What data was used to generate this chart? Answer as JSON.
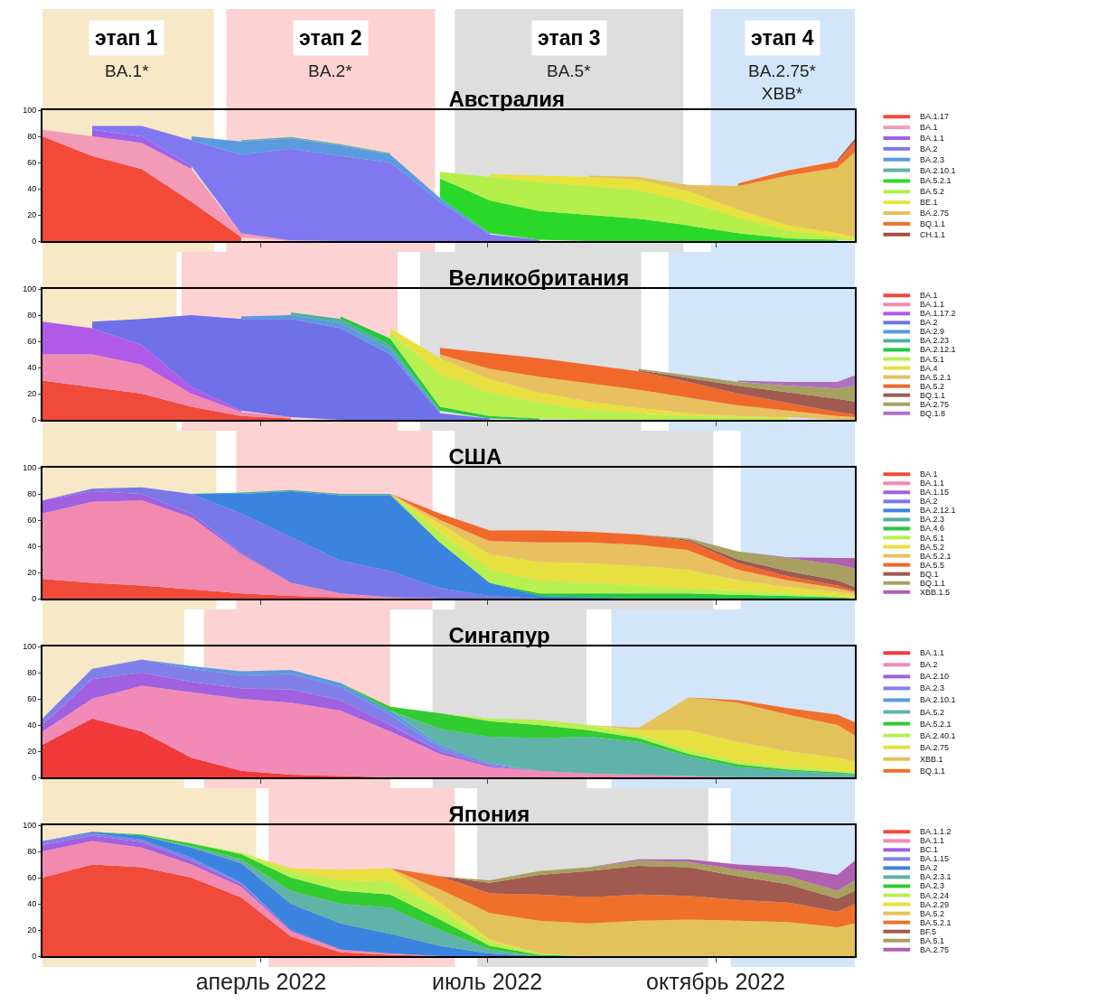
{
  "chart_data": [
    {
      "type": "area",
      "title": "Австралия",
      "stacked": true,
      "legend": "right",
      "tick_labels": "y",
      "xlim": [
        "2022-01-03",
        "2022-11-26"
      ],
      "ylim": [
        0,
        100
      ],
      "yticks": [
        0,
        20,
        40,
        60,
        80,
        100
      ],
      "xticks": [
        {
          "value": "2022-04-01",
          "label": null
        },
        {
          "value": "2022-07-01",
          "label": null
        },
        {
          "value": "2022-10-01",
          "label": null
        }
      ],
      "x": [
        "2022-01-03",
        "2022-01-23",
        "2022-02-12",
        "2022-03-04",
        "2022-03-24",
        "2022-04-13",
        "2022-05-03",
        "2022-05-23",
        "2022-06-12",
        "2022-07-02",
        "2022-07-22",
        "2022-08-11",
        "2022-08-31",
        "2022-09-20",
        "2022-10-10",
        "2022-10-30",
        "2022-11-19",
        "2022-11-26"
      ],
      "bands": [
        {
          "axis": "x",
          "from": "2022-01-03",
          "to": "2022-03-13",
          "label": "этап 1\nBA.1*",
          "color": "#f7e8c8"
        },
        {
          "axis": "x",
          "from": "2022-03-18",
          "to": "2022-06-10",
          "label": "этап 2\nBA.2*",
          "color": "#fcd2d2"
        },
        {
          "axis": "x",
          "from": "2022-06-18",
          "to": "2022-09-18",
          "label": "этап 3\nBA.5*",
          "color": "#dedede"
        },
        {
          "axis": "x",
          "from": "2022-09-29",
          "to": "2022-11-26",
          "label": "этап 4\nBA.2.75*\nXBB*",
          "color": "#d3e5f8"
        }
      ],
      "series": [
        {
          "name": "BA.1.17",
          "color": "#f44a3a",
          "values": [
            80,
            65,
            55,
            30,
            3,
            null,
            null,
            null,
            null,
            null,
            null,
            null,
            null,
            null,
            null,
            null,
            null,
            null
          ]
        },
        {
          "name": "BA.1",
          "color": "#f29ab8",
          "values": [
            5,
            15,
            20,
            25,
            3,
            0.5,
            null,
            null,
            null,
            null,
            null,
            null,
            null,
            null,
            null,
            null,
            null,
            null
          ]
        },
        {
          "name": "BA.1.1",
          "color": "#a060e8",
          "values": [
            null,
            5,
            5,
            2,
            null,
            null,
            null,
            null,
            null,
            null,
            null,
            null,
            null,
            null,
            null,
            null,
            null,
            null
          ]
        },
        {
          "name": "BA.2",
          "color": "#8078f0",
          "values": [
            null,
            3,
            8,
            20,
            60,
            70,
            65,
            60,
            30,
            5,
            1,
            null,
            null,
            null,
            null,
            null,
            null,
            null
          ]
        },
        {
          "name": "BA.2.3",
          "color": "#5a9ae0",
          "values": [
            null,
            null,
            null,
            3,
            10,
            8,
            8,
            6,
            3,
            1,
            null,
            null,
            null,
            null,
            null,
            null,
            null,
            null
          ]
        },
        {
          "name": "BA.2.10.1",
          "color": "#5fb3a8",
          "values": [
            null,
            null,
            null,
            null,
            1,
            1,
            1,
            1,
            null,
            null,
            null,
            null,
            null,
            null,
            null,
            null,
            null,
            null
          ]
        },
        {
          "name": "BA.5.2.1",
          "color": "#2ad82a",
          "values": [
            null,
            null,
            null,
            null,
            null,
            null,
            null,
            null,
            15,
            25,
            22,
            20,
            17,
            12,
            6,
            2,
            1,
            null
          ]
        },
        {
          "name": "BA.5.2",
          "color": "#b4ef4c",
          "values": [
            null,
            null,
            null,
            null,
            null,
            null,
            null,
            null,
            5,
            18,
            22,
            22,
            22,
            18,
            12,
            6,
            2,
            1
          ]
        },
        {
          "name": "BE.1",
          "color": "#e8e23a",
          "values": [
            null,
            null,
            null,
            null,
            null,
            null,
            null,
            null,
            null,
            2,
            5,
            7,
            8,
            8,
            6,
            4,
            3,
            2
          ]
        },
        {
          "name": "BA.2.75",
          "color": "#e4c25a",
          "values": [
            null,
            null,
            null,
            null,
            null,
            null,
            null,
            null,
            null,
            null,
            null,
            1,
            2,
            5,
            18,
            38,
            50,
            65
          ]
        },
        {
          "name": "BQ.1.1",
          "color": "#f0702a",
          "values": [
            null,
            null,
            null,
            null,
            null,
            null,
            null,
            null,
            null,
            null,
            null,
            null,
            null,
            null,
            2,
            4,
            5,
            8
          ]
        },
        {
          "name": "CH.1.1",
          "color": "#a0504a",
          "values": [
            null,
            null,
            null,
            null,
            null,
            null,
            null,
            null,
            null,
            null,
            null,
            null,
            null,
            null,
            null,
            null,
            1,
            2
          ]
        }
      ]
    },
    {
      "type": "area",
      "title": "Великобритания",
      "stacked": true,
      "legend": "right",
      "tick_labels": "y",
      "xlim": [
        "2022-01-03",
        "2022-11-26"
      ],
      "ylim": [
        0,
        100
      ],
      "yticks": [
        0,
        20,
        40,
        60,
        80,
        100
      ],
      "xticks": [
        {
          "value": "2022-04-01",
          "label": null
        },
        {
          "value": "2022-07-01",
          "label": null
        },
        {
          "value": "2022-10-01",
          "label": null
        }
      ],
      "x": [
        "2022-01-03",
        "2022-01-23",
        "2022-02-12",
        "2022-03-04",
        "2022-03-24",
        "2022-04-13",
        "2022-05-03",
        "2022-05-23",
        "2022-06-12",
        "2022-07-02",
        "2022-07-22",
        "2022-08-11",
        "2022-08-31",
        "2022-09-20",
        "2022-10-10",
        "2022-10-30",
        "2022-11-19",
        "2022-11-26"
      ],
      "bands": [
        {
          "axis": "x",
          "from": "2022-01-03",
          "to": "2022-02-26",
          "color": "#f7e8c8"
        },
        {
          "axis": "x",
          "from": "2022-02-28",
          "to": "2022-05-26",
          "color": "#fcd2d2"
        },
        {
          "axis": "x",
          "from": "2022-06-04",
          "to": "2022-09-01",
          "color": "#dedede"
        },
        {
          "axis": "x",
          "from": "2022-09-12",
          "to": "2022-11-26",
          "color": "#d3e5f8"
        }
      ],
      "series": [
        {
          "name": "BA.1",
          "color": "#f04a3a",
          "values": [
            30,
            25,
            20,
            10,
            3,
            1,
            null,
            null,
            null,
            null,
            null,
            null,
            null,
            null,
            null,
            null,
            null,
            null
          ]
        },
        {
          "name": "BA.1.1",
          "color": "#f28ab0",
          "values": [
            20,
            25,
            22,
            10,
            3,
            1,
            null,
            null,
            null,
            null,
            null,
            null,
            null,
            null,
            null,
            null,
            null,
            null
          ]
        },
        {
          "name": "BA.1.17.2",
          "color": "#b05ae8",
          "values": [
            25,
            20,
            15,
            5,
            1,
            null,
            null,
            null,
            null,
            null,
            null,
            null,
            null,
            null,
            null,
            null,
            null,
            null
          ]
        },
        {
          "name": "BA.2",
          "color": "#7070e8",
          "values": [
            null,
            5,
            20,
            55,
            70,
            75,
            70,
            50,
            5,
            1,
            null,
            null,
            null,
            null,
            null,
            null,
            null,
            null
          ]
        },
        {
          "name": "BA.2.9",
          "color": "#5a9ae0",
          "values": [
            null,
            null,
            null,
            null,
            2,
            3,
            4,
            4,
            1,
            null,
            null,
            null,
            null,
            null,
            null,
            null,
            null,
            null
          ]
        },
        {
          "name": "BA.2.23",
          "color": "#4fb0a0",
          "values": [
            null,
            null,
            null,
            null,
            null,
            2,
            3,
            3,
            1,
            null,
            null,
            null,
            null,
            null,
            null,
            null,
            null,
            null
          ]
        },
        {
          "name": "BA.2.12.1",
          "color": "#22c840",
          "values": [
            null,
            null,
            null,
            null,
            null,
            null,
            2,
            5,
            3,
            2,
            1,
            null,
            null,
            null,
            null,
            null,
            null,
            null
          ]
        },
        {
          "name": "BA.5.1",
          "color": "#b8f050",
          "values": [
            null,
            null,
            null,
            null,
            null,
            null,
            null,
            5,
            25,
            18,
            12,
            8,
            5,
            3,
            2,
            1,
            null,
            null
          ]
        },
        {
          "name": "BA.4",
          "color": "#e8e040",
          "values": [
            null,
            null,
            null,
            null,
            null,
            null,
            null,
            3,
            12,
            10,
            8,
            6,
            4,
            2,
            1,
            1,
            null,
            null
          ]
        },
        {
          "name": "BA.5.2.1",
          "color": "#e8c060",
          "values": [
            null,
            null,
            null,
            null,
            null,
            null,
            null,
            null,
            3,
            8,
            12,
            14,
            14,
            12,
            8,
            5,
            3,
            2
          ]
        },
        {
          "name": "BA.5.2",
          "color": "#f0682a",
          "values": [
            null,
            null,
            null,
            null,
            null,
            null,
            null,
            null,
            5,
            12,
            14,
            14,
            14,
            12,
            9,
            6,
            3,
            2
          ]
        },
        {
          "name": "BQ.1.1",
          "color": "#a05a50",
          "values": [
            null,
            null,
            null,
            null,
            null,
            null,
            null,
            null,
            null,
            null,
            null,
            null,
            1,
            3,
            6,
            8,
            10,
            10
          ]
        },
        {
          "name": "BA.2.75",
          "color": "#a8a060",
          "values": [
            null,
            null,
            null,
            null,
            null,
            null,
            null,
            null,
            null,
            null,
            null,
            null,
            1,
            2,
            3,
            5,
            8,
            12
          ]
        },
        {
          "name": "BQ.1.8",
          "color": "#b070c0",
          "values": [
            null,
            null,
            null,
            null,
            null,
            null,
            null,
            null,
            null,
            null,
            null,
            null,
            null,
            null,
            1,
            3,
            5,
            8
          ]
        }
      ]
    },
    {
      "type": "area",
      "title": "США",
      "stacked": true,
      "legend": "right",
      "tick_labels": "y",
      "xlim": [
        "2022-01-03",
        "2022-11-26"
      ],
      "ylim": [
        0,
        100
      ],
      "yticks": [
        0,
        20,
        40,
        60,
        80,
        100
      ],
      "xticks": [
        {
          "value": "2022-04-01",
          "label": null
        },
        {
          "value": "2022-07-01",
          "label": null
        },
        {
          "value": "2022-10-01",
          "label": null
        }
      ],
      "x": [
        "2022-01-03",
        "2022-01-23",
        "2022-02-12",
        "2022-03-04",
        "2022-03-24",
        "2022-04-13",
        "2022-05-03",
        "2022-05-23",
        "2022-06-12",
        "2022-07-02",
        "2022-07-22",
        "2022-08-11",
        "2022-08-31",
        "2022-09-20",
        "2022-10-10",
        "2022-10-30",
        "2022-11-19",
        "2022-11-26"
      ],
      "bands": [
        {
          "axis": "x",
          "from": "2022-01-03",
          "to": "2022-03-14",
          "color": "#f7e8c8"
        },
        {
          "axis": "x",
          "from": "2022-03-22",
          "to": "2022-06-09",
          "color": "#fcd2d2"
        },
        {
          "axis": "x",
          "from": "2022-06-18",
          "to": "2022-09-30",
          "color": "#dedede"
        },
        {
          "axis": "x",
          "from": "2022-10-11",
          "to": "2022-11-26",
          "color": "#d3e5f8"
        }
      ],
      "series": [
        {
          "name": "BA.1",
          "color": "#f04a3a",
          "values": [
            15,
            12,
            10,
            7,
            4,
            2,
            1,
            0,
            null,
            null,
            null,
            null,
            null,
            null,
            null,
            null,
            null,
            null
          ]
        },
        {
          "name": "BA.1.1",
          "color": "#f28ab0",
          "values": [
            50,
            62,
            65,
            55,
            30,
            10,
            3,
            1,
            0,
            null,
            null,
            null,
            null,
            null,
            null,
            null,
            null,
            null
          ]
        },
        {
          "name": "BA.1.15",
          "color": "#a060e0",
          "values": [
            10,
            8,
            5,
            3,
            1,
            0,
            null,
            null,
            null,
            null,
            null,
            null,
            null,
            null,
            null,
            null,
            null,
            null
          ]
        },
        {
          "name": "BA.2",
          "color": "#7878e8",
          "values": [
            0,
            2,
            5,
            15,
            30,
            35,
            25,
            20,
            8,
            2,
            0,
            null,
            null,
            null,
            null,
            null,
            null,
            null
          ]
        },
        {
          "name": "BA.2.12.1",
          "color": "#3a84e0",
          "values": [
            null,
            null,
            null,
            0,
            15,
            35,
            50,
            58,
            35,
            10,
            2,
            1,
            0,
            null,
            null,
            null,
            null,
            null
          ]
        },
        {
          "name": "BA.2.3",
          "color": "#4fb0a0",
          "values": [
            null,
            null,
            null,
            0,
            1,
            1,
            1,
            1,
            0,
            null,
            null,
            null,
            null,
            null,
            null,
            null,
            null,
            null
          ]
        },
        {
          "name": "BA.4.6",
          "color": "#22c840",
          "values": [
            null,
            null,
            null,
            null,
            null,
            null,
            null,
            null,
            null,
            0,
            2,
            3,
            4,
            4,
            3,
            2,
            1,
            0
          ]
        },
        {
          "name": "BA.5.1",
          "color": "#b8f050",
          "values": [
            null,
            null,
            null,
            null,
            null,
            null,
            null,
            0,
            8,
            10,
            10,
            8,
            6,
            4,
            3,
            2,
            1,
            1
          ]
        },
        {
          "name": "BA.5.2",
          "color": "#e8e040",
          "values": [
            null,
            null,
            null,
            null,
            null,
            null,
            null,
            0,
            6,
            12,
            14,
            15,
            15,
            14,
            8,
            5,
            3,
            2
          ]
        },
        {
          "name": "BA.5.2.1",
          "color": "#e8c060",
          "values": [
            null,
            null,
            null,
            null,
            null,
            null,
            null,
            0,
            3,
            10,
            15,
            16,
            16,
            15,
            8,
            5,
            3,
            2
          ]
        },
        {
          "name": "BA.5.5",
          "color": "#f0682a",
          "values": [
            null,
            null,
            null,
            null,
            null,
            null,
            null,
            0,
            5,
            8,
            9,
            8,
            8,
            7,
            5,
            3,
            2,
            1
          ]
        },
        {
          "name": "BQ.1",
          "color": "#a05a50",
          "values": [
            null,
            null,
            null,
            null,
            null,
            null,
            null,
            null,
            null,
            null,
            null,
            null,
            0,
            1,
            3,
            4,
            4,
            3
          ]
        },
        {
          "name": "BQ.1.1",
          "color": "#a8a060",
          "values": [
            null,
            null,
            null,
            null,
            null,
            null,
            null,
            null,
            null,
            null,
            null,
            null,
            0,
            1,
            6,
            10,
            12,
            14
          ]
        },
        {
          "name": "XBB.1.5",
          "color": "#b060b0",
          "values": [
            null,
            null,
            null,
            null,
            null,
            null,
            null,
            null,
            null,
            null,
            null,
            null,
            null,
            null,
            0,
            0.5,
            5,
            8
          ]
        }
      ]
    },
    {
      "type": "area",
      "title": "Сингапур",
      "stacked": true,
      "legend": "right",
      "tick_labels": "y",
      "xlim": [
        "2022-01-03",
        "2022-11-26"
      ],
      "ylim": [
        0,
        100
      ],
      "yticks": [
        0,
        20,
        40,
        60,
        80,
        100
      ],
      "xticks": [
        {
          "value": "2022-04-01",
          "label": null
        },
        {
          "value": "2022-07-01",
          "label": null
        },
        {
          "value": "2022-10-01",
          "label": null
        }
      ],
      "x": [
        "2022-01-03",
        "2022-01-23",
        "2022-02-12",
        "2022-03-04",
        "2022-03-24",
        "2022-04-13",
        "2022-05-03",
        "2022-05-23",
        "2022-06-12",
        "2022-07-02",
        "2022-07-22",
        "2022-08-11",
        "2022-08-31",
        "2022-09-20",
        "2022-10-10",
        "2022-10-30",
        "2022-11-19",
        "2022-11-26"
      ],
      "bands": [
        {
          "axis": "x",
          "from": "2022-01-03",
          "to": "2022-03-01",
          "color": "#f7e8c8"
        },
        {
          "axis": "x",
          "from": "2022-03-09",
          "to": "2022-05-23",
          "color": "#fcd2d2"
        },
        {
          "axis": "x",
          "from": "2022-06-09",
          "to": "2022-08-10",
          "color": "#dedede"
        },
        {
          "axis": "x",
          "from": "2022-08-20",
          "to": "2022-11-26",
          "color": "#d3e5f8"
        }
      ],
      "series": [
        {
          "name": "BA.1.1",
          "color": "#f03a3a",
          "values": [
            25,
            45,
            35,
            15,
            5,
            2,
            1,
            0,
            null,
            null,
            null,
            null,
            null,
            null,
            null,
            null,
            null,
            null
          ]
        },
        {
          "name": "BA.2",
          "color": "#f28ab8",
          "values": [
            10,
            15,
            35,
            50,
            55,
            55,
            50,
            35,
            18,
            8,
            5,
            3,
            2,
            1,
            0,
            null,
            null,
            null
          ]
        },
        {
          "name": "BA.2.10",
          "color": "#a060e0",
          "values": [
            5,
            15,
            10,
            8,
            8,
            10,
            8,
            5,
            2,
            1,
            0,
            null,
            null,
            null,
            null,
            null,
            null,
            null
          ]
        },
        {
          "name": "BA.2.3",
          "color": "#8080e8",
          "values": [
            5,
            8,
            10,
            10,
            10,
            12,
            10,
            8,
            3,
            1,
            0,
            null,
            null,
            null,
            null,
            null,
            null,
            null
          ]
        },
        {
          "name": "BA.2.10.1",
          "color": "#5a9ae0",
          "values": [
            null,
            null,
            0,
            2,
            3,
            3,
            3,
            3,
            2,
            1,
            0,
            null,
            null,
            null,
            null,
            null,
            null,
            null
          ]
        },
        {
          "name": "BA.5.2",
          "color": "#5fb3a8",
          "values": [
            null,
            null,
            null,
            null,
            null,
            null,
            null,
            0,
            12,
            20,
            25,
            28,
            25,
            15,
            8,
            5,
            3,
            2
          ]
        },
        {
          "name": "BA.5.2.1",
          "color": "#30cc30",
          "values": [
            null,
            null,
            null,
            null,
            null,
            null,
            0,
            3,
            12,
            12,
            10,
            5,
            3,
            2,
            2,
            1,
            1,
            1
          ]
        },
        {
          "name": "BA.2.40.1",
          "color": "#b8f050",
          "values": [
            null,
            null,
            null,
            null,
            null,
            null,
            null,
            null,
            0,
            2,
            4,
            4,
            3,
            3,
            2,
            2,
            1,
            1
          ]
        },
        {
          "name": "BA.2.75",
          "color": "#e8e040",
          "values": [
            null,
            null,
            null,
            null,
            null,
            null,
            null,
            null,
            null,
            null,
            null,
            0,
            3,
            15,
            15,
            12,
            10,
            8
          ]
        },
        {
          "name": "XBB.1",
          "color": "#e4c25a",
          "values": [
            null,
            null,
            null,
            null,
            null,
            null,
            null,
            null,
            null,
            null,
            null,
            0,
            2,
            25,
            30,
            28,
            25,
            20
          ]
        },
        {
          "name": "BQ.1.1",
          "color": "#f0702a",
          "values": [
            null,
            null,
            null,
            null,
            null,
            null,
            null,
            null,
            null,
            null,
            null,
            null,
            null,
            0,
            2,
            5,
            8,
            10
          ]
        }
      ]
    },
    {
      "type": "area",
      "title": "Япония",
      "stacked": true,
      "legend": "right",
      "xlim": [
        "2022-01-03",
        "2022-11-26"
      ],
      "ylim": [
        0,
        100
      ],
      "yticks": [
        0,
        20,
        40,
        60,
        80,
        100
      ],
      "xticks": [
        {
          "value": "2022-04-01",
          "label": "аперль 2022"
        },
        {
          "value": "2022-07-01",
          "label": "июль 2022"
        },
        {
          "value": "2022-10-01",
          "label": "октябрь 2022"
        }
      ],
      "x": [
        "2022-01-03",
        "2022-01-23",
        "2022-02-12",
        "2022-03-04",
        "2022-03-24",
        "2022-04-13",
        "2022-05-03",
        "2022-05-23",
        "2022-06-12",
        "2022-07-02",
        "2022-07-22",
        "2022-08-11",
        "2022-08-31",
        "2022-09-20",
        "2022-10-10",
        "2022-10-30",
        "2022-11-19",
        "2022-11-26"
      ],
      "bands": [
        {
          "axis": "x",
          "from": "2022-01-03",
          "to": "2022-03-30",
          "color": "#f7e8c8"
        },
        {
          "axis": "x",
          "from": "2022-04-04",
          "to": "2022-06-18",
          "color": "#fcd2d2"
        },
        {
          "axis": "x",
          "from": "2022-06-27",
          "to": "2022-09-28",
          "color": "#dedede"
        },
        {
          "axis": "x",
          "from": "2022-10-07",
          "to": "2022-11-26",
          "color": "#d3e5f8"
        }
      ],
      "series": [
        {
          "name": "BA.1.1.2",
          "color": "#f04a3a",
          "values": [
            60,
            70,
            68,
            60,
            45,
            15,
            3,
            1,
            0,
            null,
            null,
            null,
            null,
            null,
            null,
            null,
            null,
            null
          ]
        },
        {
          "name": "BA.1.1",
          "color": "#f28ab0",
          "values": [
            20,
            18,
            15,
            10,
            8,
            4,
            2,
            1,
            0,
            null,
            null,
            null,
            null,
            null,
            null,
            null,
            null,
            null
          ]
        },
        {
          "name": "BC.1",
          "color": "#a060e0",
          "values": [
            5,
            4,
            4,
            3,
            2,
            1,
            0,
            null,
            null,
            null,
            null,
            null,
            null,
            null,
            null,
            null,
            null,
            null
          ]
        },
        {
          "name": "BA.1.15",
          "color": "#8080e8",
          "values": [
            3,
            2,
            2,
            2,
            1,
            0,
            null,
            null,
            null,
            null,
            null,
            null,
            null,
            null,
            null,
            null,
            null,
            null
          ]
        },
        {
          "name": "BA.2",
          "color": "#3a84e0",
          "values": [
            0,
            1,
            3,
            8,
            15,
            20,
            20,
            15,
            8,
            2,
            0,
            null,
            null,
            null,
            null,
            null,
            null,
            null
          ]
        },
        {
          "name": "BA.2.3.1",
          "color": "#5fb3a8",
          "values": [
            null,
            null,
            0,
            1,
            3,
            10,
            15,
            20,
            12,
            3,
            0,
            null,
            null,
            null,
            null,
            null,
            null,
            null
          ]
        },
        {
          "name": "BA.2.3",
          "color": "#30cc30",
          "values": [
            null,
            0,
            1,
            2,
            4,
            10,
            10,
            10,
            8,
            3,
            1,
            0,
            null,
            null,
            null,
            null,
            null,
            null
          ]
        },
        {
          "name": "BA.2.24",
          "color": "#b8f050",
          "values": [
            null,
            null,
            null,
            0,
            1,
            5,
            8,
            10,
            8,
            3,
            1,
            0,
            null,
            null,
            null,
            null,
            null,
            null
          ]
        },
        {
          "name": "BA.2.29",
          "color": "#e8e040",
          "values": [
            null,
            null,
            null,
            null,
            0,
            2,
            8,
            10,
            5,
            2,
            0,
            null,
            null,
            null,
            null,
            null,
            null,
            null
          ]
        },
        {
          "name": "BA.5.2",
          "color": "#e4c25a",
          "values": [
            null,
            null,
            null,
            null,
            null,
            null,
            null,
            0,
            10,
            20,
            25,
            25,
            27,
            28,
            27,
            26,
            22,
            25
          ]
        },
        {
          "name": "BA.5.2.1",
          "color": "#f0702a",
          "values": [
            null,
            null,
            null,
            null,
            null,
            null,
            null,
            0,
            10,
            15,
            20,
            20,
            20,
            18,
            16,
            15,
            12,
            15
          ]
        },
        {
          "name": "BF.5",
          "color": "#a05a50",
          "values": [
            null,
            null,
            null,
            null,
            null,
            null,
            null,
            null,
            0,
            8,
            15,
            20,
            22,
            22,
            18,
            14,
            10,
            10
          ]
        },
        {
          "name": "BA.5.1",
          "color": "#a8a060",
          "values": [
            null,
            null,
            null,
            null,
            null,
            null,
            null,
            null,
            0,
            2,
            3,
            3,
            4,
            4,
            5,
            6,
            6,
            8
          ]
        },
        {
          "name": "BA.2.75",
          "color": "#b060b0",
          "values": [
            null,
            null,
            null,
            null,
            null,
            null,
            null,
            null,
            null,
            null,
            null,
            0,
            1,
            2,
            4,
            7,
            12,
            15
          ]
        }
      ]
    }
  ]
}
